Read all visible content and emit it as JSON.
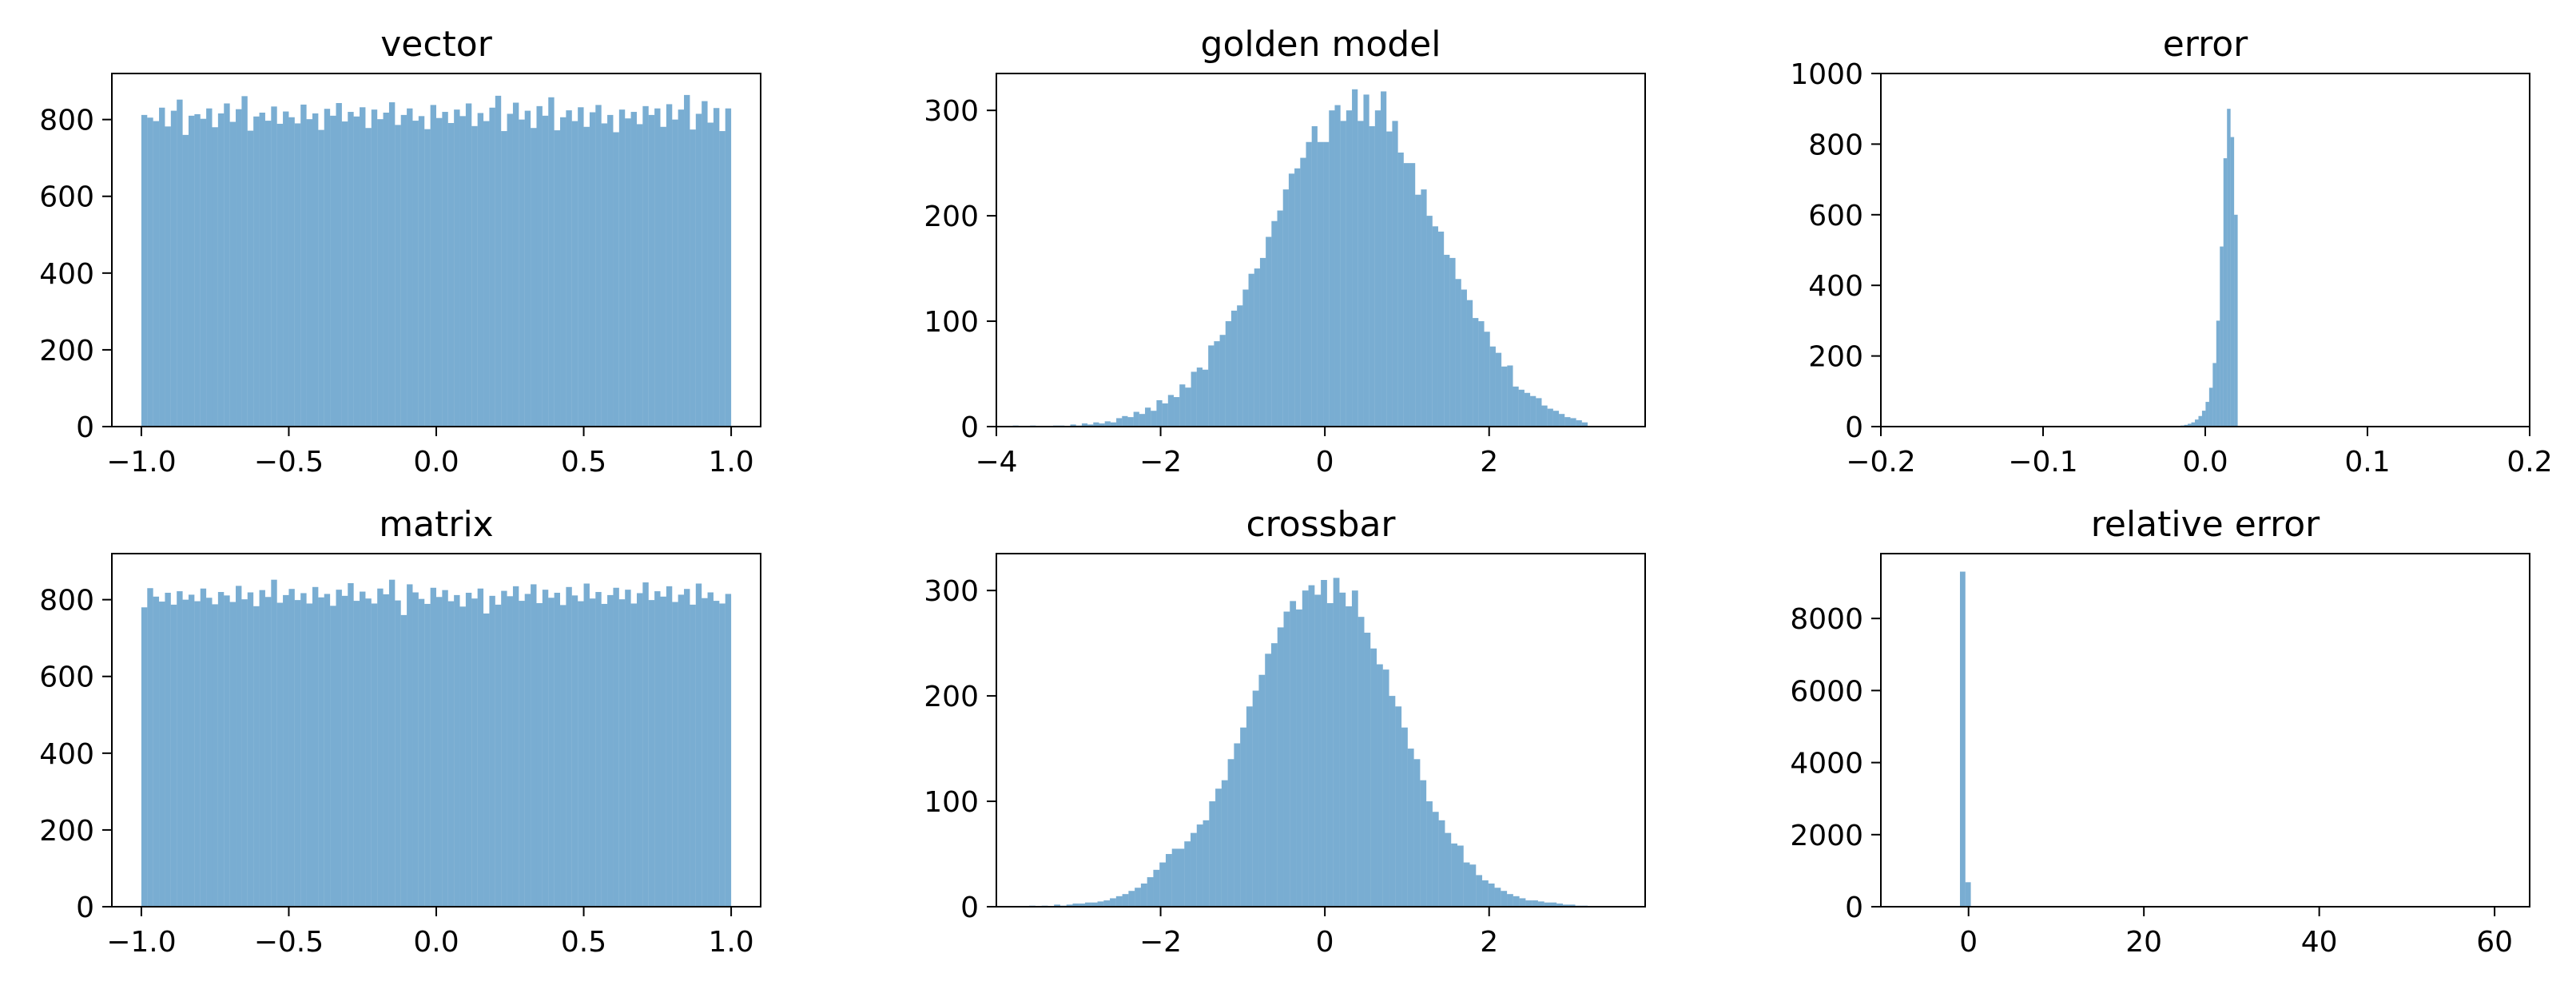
{
  "style": {
    "bar_color": "#1f77b4",
    "bar_opacity": 0.6
  },
  "chart_data": [
    {
      "id": "vector",
      "type": "bar",
      "title": "vector",
      "xlabel": "",
      "ylabel": "",
      "xlim": [
        -1.1,
        1.1
      ],
      "ylim": [
        0,
        920
      ],
      "xticks": [
        -1.0,
        -0.5,
        0.0,
        0.5,
        1.0
      ],
      "xtick_labels": [
        "−1.0",
        "−0.5",
        "0.0",
        "0.5",
        "1.0"
      ],
      "yticks": [
        0,
        200,
        400,
        600,
        800
      ],
      "ytick_labels": [
        "0",
        "200",
        "400",
        "600",
        "800"
      ],
      "bin_range": [
        -1.0,
        1.0
      ],
      "values": [
        812,
        805,
        796,
        831,
        782,
        823,
        852,
        760,
        810,
        814,
        802,
        829,
        780,
        816,
        842,
        794,
        827,
        861,
        771,
        808,
        818,
        797,
        834,
        789,
        821,
        806,
        790,
        839,
        801,
        816,
        773,
        828,
        810,
        843,
        795,
        820,
        808,
        832,
        778,
        826,
        801,
        818,
        845,
        786,
        812,
        829,
        797,
        809,
        775,
        838,
        804,
        820,
        791,
        826,
        809,
        842,
        783,
        817,
        796,
        831,
        862,
        770,
        815,
        844,
        800,
        823,
        778,
        835,
        810,
        858,
        772,
        806,
        824,
        796,
        832,
        781,
        819,
        838,
        790,
        812,
        767,
        826,
        803,
        820,
        788,
        835,
        812,
        829,
        781,
        840,
        800,
        826,
        864,
        774,
        815,
        848,
        792,
        830,
        770,
        829
      ]
    },
    {
      "id": "golden-model",
      "type": "bar",
      "title": "golden model",
      "xlabel": "",
      "ylabel": "",
      "xlim": [
        -4.0,
        3.9
      ],
      "ylim": [
        0,
        335
      ],
      "xticks": [
        -4,
        -2,
        0,
        2
      ],
      "xtick_labels": [
        "−4",
        "−2",
        "0",
        "2"
      ],
      "yticks": [
        0,
        100,
        200,
        300
      ],
      "ytick_labels": [
        "0",
        "100",
        "200",
        "300"
      ],
      "bin_range": [
        -3.8,
        3.2
      ],
      "values": [
        1,
        0,
        0,
        1,
        0,
        0,
        0,
        1,
        1,
        0,
        2,
        1,
        3,
        2,
        4,
        3,
        5,
        4,
        8,
        10,
        9,
        14,
        12,
        18,
        15,
        25,
        22,
        30,
        28,
        40,
        37,
        52,
        56,
        54,
        77,
        81,
        87,
        100,
        110,
        115,
        130,
        145,
        150,
        160,
        180,
        195,
        205,
        225,
        240,
        245,
        255,
        270,
        285,
        270,
        270,
        300,
        305,
        290,
        300,
        320,
        290,
        315,
        285,
        300,
        318,
        280,
        290,
        260,
        250,
        250,
        220,
        225,
        200,
        190,
        185,
        163,
        160,
        140,
        130,
        120,
        103,
        100,
        90,
        76,
        70,
        57,
        58,
        38,
        35,
        32,
        29,
        27,
        20,
        17,
        15,
        12,
        9,
        8,
        6,
        4
      ]
    },
    {
      "id": "error",
      "type": "bar",
      "title": "error",
      "xlabel": "",
      "ylabel": "",
      "xlim": [
        -0.2,
        0.2
      ],
      "ylim": [
        0,
        1000
      ],
      "xticks": [
        -0.2,
        -0.1,
        0.0,
        0.1,
        0.2
      ],
      "xtick_labels": [
        "−0.2",
        "−0.1",
        "0.0",
        "0.1",
        "0.2"
      ],
      "yticks": [
        0,
        200,
        400,
        600,
        800,
        1000
      ],
      "ytick_labels": [
        "0",
        "200",
        "400",
        "600",
        "800",
        "1000"
      ],
      "bin_range": [
        -0.2,
        0.02
      ],
      "values": [
        1,
        0,
        0,
        0,
        0,
        0,
        0,
        0,
        0,
        0,
        0,
        0,
        0,
        0,
        0,
        0,
        0,
        0,
        0,
        0,
        0,
        0,
        0,
        0,
        0,
        0,
        0,
        0,
        0,
        1,
        0,
        0,
        0,
        0,
        0,
        0,
        0,
        0,
        0,
        0,
        0,
        0,
        0,
        0,
        0,
        0,
        0,
        0,
        0,
        0,
        0,
        0,
        0,
        0,
        0,
        0,
        0,
        0,
        0,
        0,
        0,
        0,
        0,
        0,
        1,
        0,
        0,
        0,
        0,
        0,
        0,
        0,
        0,
        0,
        0,
        0,
        0,
        0,
        1,
        0,
        1,
        1,
        2,
        2,
        3,
        5,
        8,
        12,
        20,
        30,
        45,
        70,
        110,
        180,
        300,
        510,
        760,
        900,
        820,
        600
      ]
    },
    {
      "id": "matrix",
      "type": "bar",
      "title": "matrix",
      "xlabel": "",
      "ylabel": "",
      "xlim": [
        -1.1,
        1.1
      ],
      "ylim": [
        0,
        920
      ],
      "xticks": [
        -1.0,
        -0.5,
        0.0,
        0.5,
        1.0
      ],
      "xtick_labels": [
        "−1.0",
        "−0.5",
        "0.0",
        "0.5",
        "1.0"
      ],
      "yticks": [
        0,
        200,
        400,
        600,
        800
      ],
      "ytick_labels": [
        "0",
        "200",
        "400",
        "600",
        "800"
      ],
      "bin_range": [
        -1.0,
        1.0
      ],
      "values": [
        780,
        830,
        808,
        795,
        818,
        787,
        822,
        800,
        813,
        796,
        829,
        805,
        788,
        820,
        811,
        794,
        836,
        801,
        819,
        783,
        825,
        807,
        852,
        792,
        812,
        828,
        799,
        817,
        790,
        833,
        806,
        815,
        784,
        826,
        810,
        843,
        797,
        821,
        803,
        790,
        829,
        814,
        852,
        798,
        760,
        840,
        819,
        802,
        789,
        831,
        807,
        825,
        796,
        812,
        782,
        818,
        803,
        829,
        764,
        810,
        787,
        823,
        809,
        835,
        797,
        815,
        840,
        791,
        826,
        805,
        818,
        786,
        833,
        811,
        796,
        842,
        803,
        820,
        789,
        812,
        831,
        801,
        826,
        790,
        817,
        845,
        799,
        822,
        808,
        835,
        794,
        813,
        828,
        787,
        842,
        804,
        819,
        797,
        790,
        815
      ]
    },
    {
      "id": "crossbar",
      "type": "bar",
      "title": "crossbar",
      "xlabel": "",
      "ylabel": "",
      "xlim": [
        -4.0,
        3.9
      ],
      "ylim": [
        0,
        335
      ],
      "xticks": [
        -2,
        0,
        2
      ],
      "xtick_labels": [
        "−2",
        "0",
        "2"
      ],
      "yticks": [
        0,
        100,
        200,
        300
      ],
      "ytick_labels": [
        "0",
        "100",
        "200",
        "300"
      ],
      "bin_range": [
        -3.6,
        3.2
      ],
      "values": [
        1,
        0,
        1,
        0,
        2,
        1,
        2,
        3,
        3,
        4,
        4,
        5,
        6,
        8,
        10,
        12,
        15,
        18,
        22,
        28,
        35,
        42,
        50,
        55,
        55,
        62,
        70,
        78,
        82,
        100,
        112,
        120,
        140,
        155,
        170,
        190,
        205,
        220,
        240,
        250,
        265,
        280,
        290,
        282,
        300,
        305,
        296,
        310,
        288,
        312,
        298,
        285,
        300,
        275,
        260,
        245,
        230,
        225,
        200,
        190,
        170,
        150,
        140,
        120,
        100,
        90,
        82,
        70,
        60,
        58,
        42,
        40,
        30,
        25,
        22,
        18,
        15,
        12,
        10,
        8,
        6,
        6,
        5,
        4,
        4,
        3,
        2,
        2,
        1,
        1
      ]
    },
    {
      "id": "relative-error",
      "type": "bar",
      "title": "relative error",
      "xlabel": "",
      "ylabel": "",
      "xlim": [
        -10,
        64
      ],
      "ylim": [
        0,
        9800
      ],
      "xticks": [
        0,
        20,
        40,
        60
      ],
      "xtick_labels": [
        "0",
        "20",
        "40",
        "60"
      ],
      "yticks": [
        0,
        2000,
        4000,
        6000,
        8000
      ],
      "ytick_labels": [
        "0",
        "2000",
        "4000",
        "6000",
        "8000"
      ],
      "bin_range": [
        -1.6,
        60.4
      ],
      "values": [
        0,
        9300,
        680,
        15,
        5,
        3,
        2,
        1,
        1,
        1,
        0,
        1,
        0,
        0,
        0,
        0,
        0,
        0,
        0,
        0,
        0,
        0,
        0,
        0,
        0,
        0,
        0,
        0,
        0,
        0,
        0,
        0,
        0,
        0,
        0,
        0,
        0,
        0,
        0,
        0,
        0,
        0,
        0,
        0,
        0,
        0,
        0,
        0,
        0,
        0,
        0,
        0,
        0,
        0,
        0,
        0,
        0,
        0,
        0,
        0,
        0,
        0,
        0,
        0,
        0,
        0,
        0,
        0,
        0,
        0,
        0,
        0,
        0,
        0,
        0,
        0,
        0,
        0,
        0,
        0,
        0,
        0,
        0,
        0,
        0,
        0,
        0,
        0,
        0,
        0,
        0,
        0,
        0,
        0,
        0,
        0,
        0,
        0,
        0,
        1
      ]
    }
  ]
}
